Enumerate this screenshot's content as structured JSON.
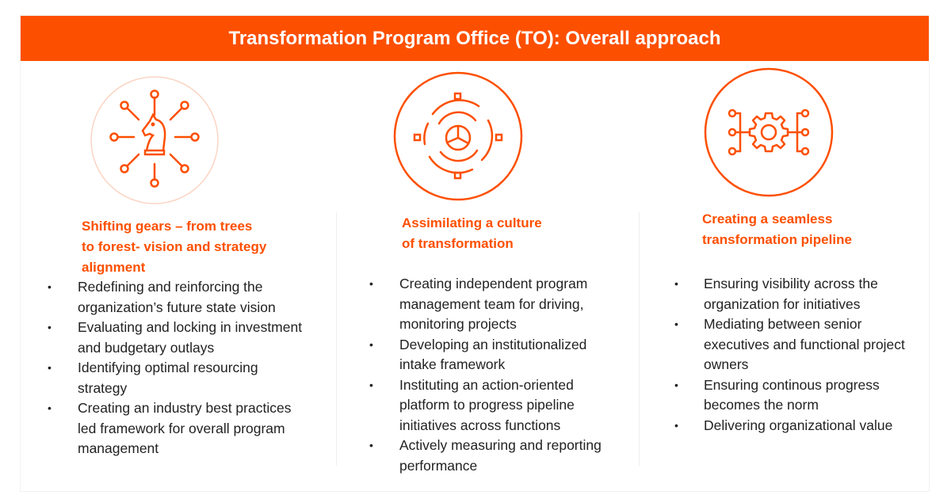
{
  "title": "Transformation Program Office (TO): Overall approach",
  "colors": {
    "accent": "#fd4f00",
    "text": "#222222"
  },
  "columns": [
    {
      "icon": "chess-knight-network-icon",
      "title_lines": [
        "Shifting gears –  from trees",
        "to forest- vision and strategy",
        "alignment"
      ],
      "bullets": [
        [
          "Redefining and reinforcing the",
          "organization’s future state vision"
        ],
        [
          "Evaluating and locking in investment",
          "and budgetary outlays"
        ],
        [
          "Identifying optimal resourcing",
          "strategy"
        ],
        [
          "Creating an industry best practices",
          "led framework for overall program",
          "management"
        ]
      ]
    },
    {
      "icon": "pie-chart-cycle-icon",
      "title_lines": [
        "Assimilating a culture",
        "of transformation"
      ],
      "bullets": [
        [
          "Creating independent program",
          "management team for driving,",
          "monitoring projects"
        ],
        [
          "Developing an institutionalized",
          "intake framework"
        ],
        [
          "Instituting an action-oriented",
          "platform to progress pipeline",
          "initiatives across functions"
        ],
        [
          "Actively measuring and reporting",
          "performance"
        ]
      ]
    },
    {
      "icon": "gear-pipeline-icon",
      "title_lines": [
        "Creating a seamless",
        "transformation pipeline"
      ],
      "bullets": [
        [
          "Ensuring visibility across the",
          "organization for initiatives"
        ],
        [
          "Mediating between senior",
          "executives and functional project",
          "owners"
        ],
        [
          "Ensuring continous progress",
          "becomes the norm"
        ],
        [
          "Delivering organizational value"
        ]
      ]
    }
  ]
}
